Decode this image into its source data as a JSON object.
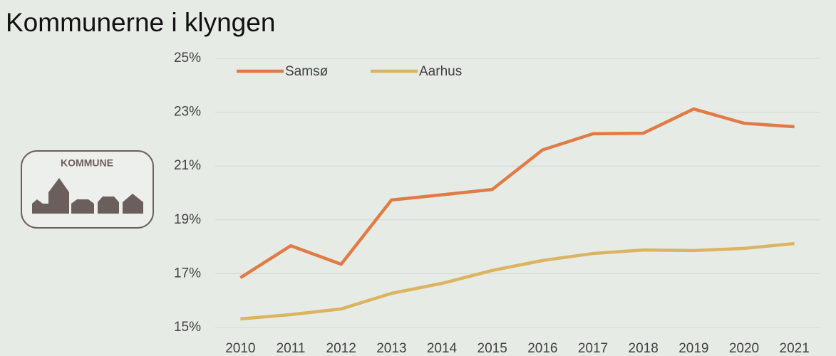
{
  "logo_text": "KOMMUNE",
  "chart_data": {
    "type": "line",
    "title": "Kommunerne i klyngen",
    "categories": [
      "2010",
      "2011",
      "2012",
      "2013",
      "2014",
      "2015",
      "2016",
      "2017",
      "2018",
      "2019",
      "2020",
      "2021"
    ],
    "series": [
      {
        "name": "Samsø",
        "color": "#e07b45",
        "values": [
          16.85,
          18.04,
          17.35,
          19.74,
          19.93,
          20.13,
          21.6,
          22.2,
          22.22,
          23.12,
          22.59,
          22.46
        ]
      },
      {
        "name": "Aarhus",
        "color": "#dbb462",
        "values": [
          15.32,
          15.48,
          15.69,
          16.27,
          16.64,
          17.12,
          17.49,
          17.75,
          17.88,
          17.86,
          17.94,
          18.12
        ]
      }
    ],
    "ylim": [
      15,
      25
    ],
    "yticks": [
      {
        "value": 15,
        "label": "15%"
      },
      {
        "value": 17,
        "label": "17%"
      },
      {
        "value": 19,
        "label": "19%"
      },
      {
        "value": 21,
        "label": "21%"
      },
      {
        "value": 23,
        "label": "23%"
      },
      {
        "value": 25,
        "label": "25%"
      }
    ],
    "grid": true,
    "legend": "top-left"
  }
}
